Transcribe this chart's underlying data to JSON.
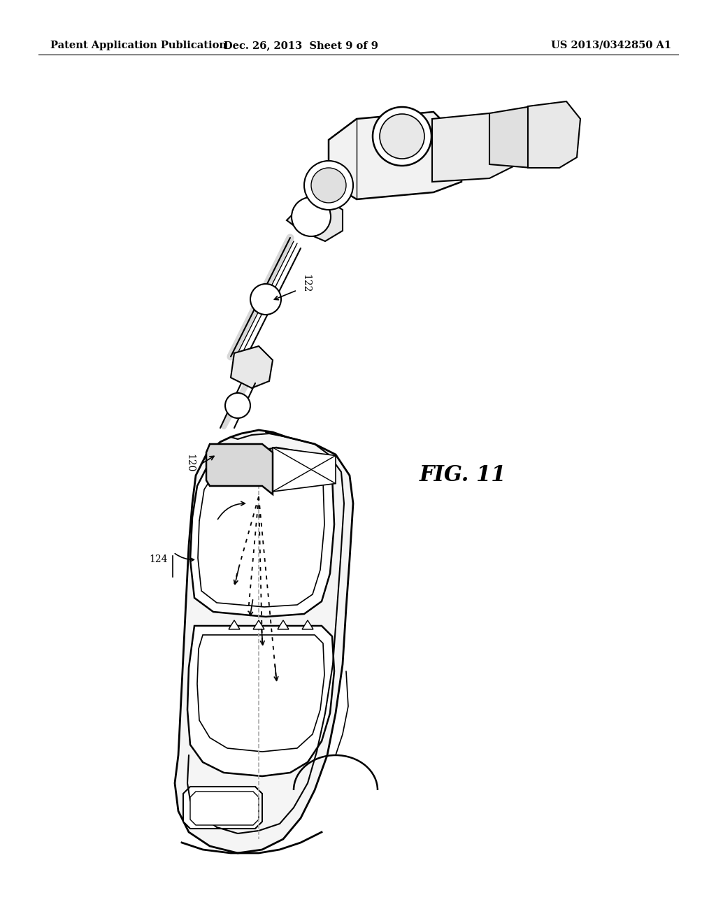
{
  "background_color": "#ffffff",
  "header_left": "Patent Application Publication",
  "header_center": "Dec. 26, 2013  Sheet 9 of 9",
  "header_right": "US 2013/0342850 A1",
  "fig_label": "FIG. 11",
  "text_color": "#000000",
  "line_color": "#000000",
  "header_fontsize": 10.5,
  "fig_label_fontsize": 22,
  "label_fontsize": 10
}
